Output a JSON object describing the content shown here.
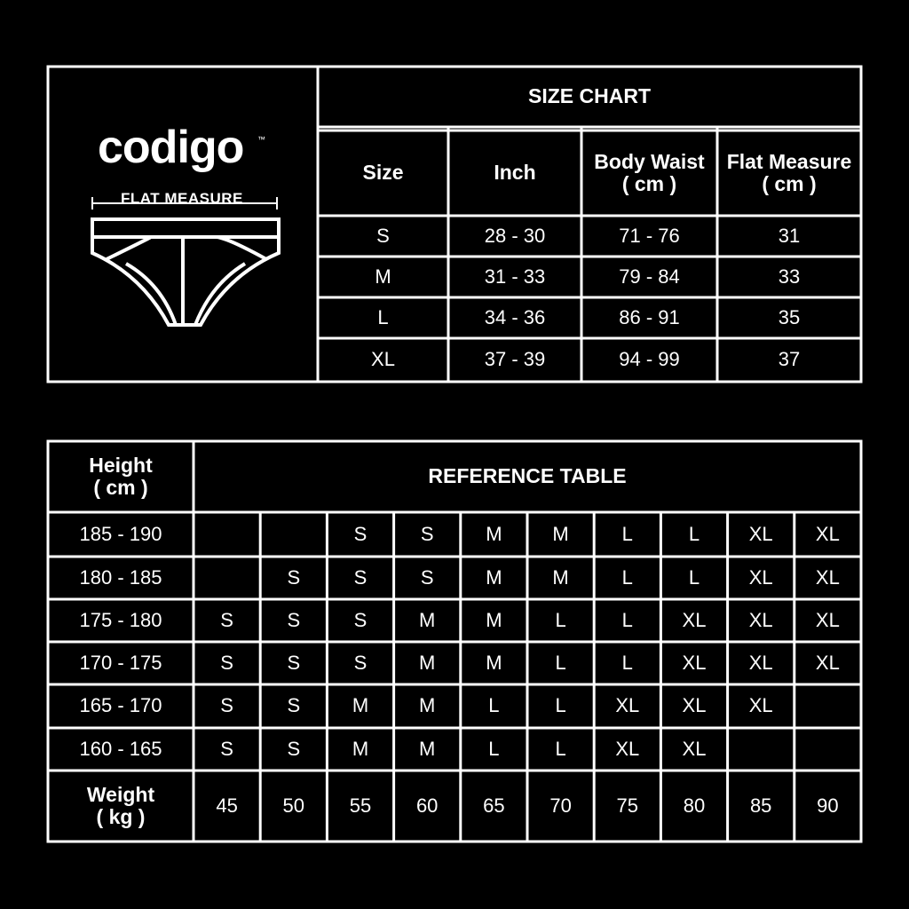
{
  "logo": {
    "brand": "codigo",
    "trademark": "™",
    "caption": "FLAT MEASURE"
  },
  "size_chart": {
    "title": "SIZE CHART",
    "headers": [
      "Size",
      "Inch",
      "Body Waist\n( cm )",
      "Flat Measure\n( cm )"
    ],
    "rows": [
      [
        "S",
        "28 - 30",
        "71 - 76",
        31
      ],
      [
        "M",
        "31 - 33",
        "79 - 84",
        33
      ],
      [
        "L",
        "34 - 36",
        "86 - 91",
        35
      ],
      [
        "XL",
        "37 - 39",
        "94 - 99",
        37
      ]
    ]
  },
  "reference_table": {
    "title": "REFERENCE TABLE",
    "height_header": "Height\n( cm )",
    "rows": [
      {
        "height": "185 - 190",
        "sizes": [
          null,
          null,
          "S",
          "S",
          "M",
          "M",
          "L",
          "L",
          "XL",
          "XL"
        ]
      },
      {
        "height": "180 - 185",
        "sizes": [
          null,
          "S",
          "S",
          "S",
          "M",
          "M",
          "L",
          "L",
          "XL",
          "XL"
        ]
      },
      {
        "height": "175 - 180",
        "sizes": [
          "S",
          "S",
          "S",
          "M",
          "M",
          "L",
          "L",
          "XL",
          "XL",
          "XL"
        ]
      },
      {
        "height": "170 - 175",
        "sizes": [
          "S",
          "S",
          "S",
          "M",
          "M",
          "L",
          "L",
          "XL",
          "XL",
          "XL"
        ]
      },
      {
        "height": "165 - 170",
        "sizes": [
          "S",
          "S",
          "M",
          "M",
          "L",
          "L",
          "XL",
          "XL",
          "XL",
          null
        ]
      },
      {
        "height": "160 - 165",
        "sizes": [
          "S",
          "S",
          "M",
          "M",
          "L",
          "L",
          "XL",
          "XL",
          null,
          null
        ]
      }
    ],
    "weight_header": "Weight\n( kg )",
    "weights": [
      45,
      50,
      55,
      60,
      65,
      70,
      75,
      80,
      85,
      90
    ]
  }
}
